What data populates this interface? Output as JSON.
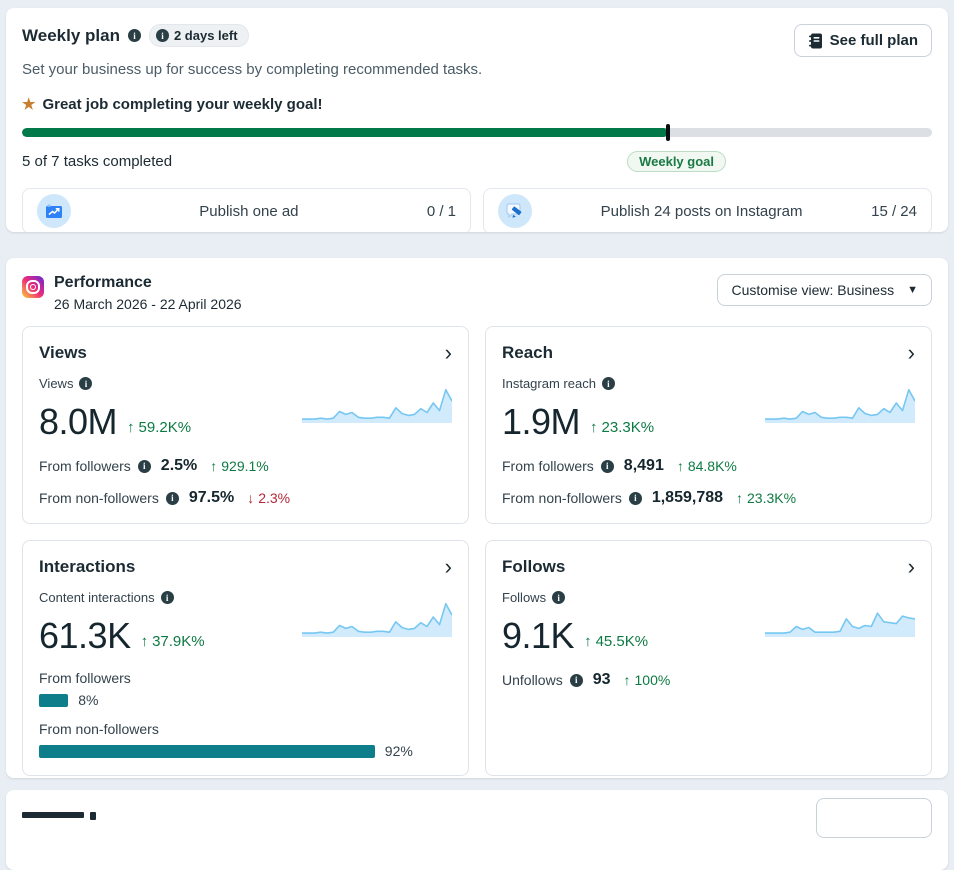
{
  "colors": {
    "progress_green": "#017949",
    "positive_green": "#0e7a43",
    "negative_red": "#b42939",
    "teal_bar": "#0f7e8b",
    "spark_line": "#76c7f2",
    "spark_fill": "#d2ebfc",
    "page_bg": "#e9edf4"
  },
  "weekly_plan": {
    "title": "Weekly plan",
    "days_left_badge": "2 days left",
    "subtitle": "Set your business up for success by completing recommended tasks.",
    "see_full_plan_label": "See full plan",
    "goal_message": "Great job completing your weekly goal!",
    "progress_percent": 71,
    "tasks_completed_text": "5 of 7 tasks completed",
    "weekly_goal_label": "Weekly goal",
    "tasks": [
      {
        "label": "Publish one ad",
        "progress": "0 / 1",
        "icon": "ad-chart-icon"
      },
      {
        "label": "Publish 24 posts on Instagram",
        "progress": "15 / 24",
        "icon": "post-pencil-icon"
      }
    ]
  },
  "performance": {
    "title": "Performance",
    "date_range": "26 March 2026 - 22 April 2026",
    "customise_view_label": "Customise view: Business",
    "cards": [
      {
        "title": "Views",
        "metric_label": "Views",
        "value": "8.0M",
        "delta": "59.2K%",
        "delta_dir": "up",
        "rows": [
          {
            "label": "From followers",
            "value": "2.5%",
            "delta": "929.1%",
            "dir": "up"
          },
          {
            "label": "From non-followers",
            "value": "97.5%",
            "delta": "2.3%",
            "dir": "down"
          }
        ],
        "sparkline": [
          3,
          3,
          3,
          4,
          3,
          4,
          11,
          8,
          10,
          5,
          4,
          4,
          5,
          5,
          4,
          15,
          9,
          7,
          8,
          14,
          10,
          20,
          12,
          34,
          22
        ]
      },
      {
        "title": "Reach",
        "metric_label": "Instagram reach",
        "value": "1.9M",
        "delta": "23.3K%",
        "delta_dir": "up",
        "rows": [
          {
            "label": "From followers",
            "value": "8,491",
            "delta": "84.8K%",
            "dir": "up"
          },
          {
            "label": "From non-followers",
            "value": "1,859,788",
            "delta": "23.3K%",
            "dir": "up"
          }
        ],
        "sparkline": [
          3,
          3,
          3,
          4,
          3,
          4,
          11,
          8,
          10,
          5,
          4,
          4,
          5,
          5,
          4,
          15,
          9,
          7,
          8,
          14,
          10,
          20,
          12,
          34,
          22
        ]
      },
      {
        "title": "Interactions",
        "metric_label": "Content interactions",
        "value": "61.3K",
        "delta": "37.9K%",
        "delta_dir": "up",
        "bars": [
          {
            "label": "From followers",
            "percent": 8
          },
          {
            "label": "From non-followers",
            "percent": 92
          }
        ],
        "sparkline": [
          3,
          3,
          3,
          4,
          3,
          4,
          11,
          8,
          10,
          5,
          4,
          4,
          5,
          5,
          4,
          15,
          9,
          7,
          8,
          14,
          10,
          20,
          12,
          34,
          22
        ]
      },
      {
        "title": "Follows",
        "metric_label": "Follows",
        "value": "9.1K",
        "delta": "45.5K%",
        "delta_dir": "up",
        "rows": [
          {
            "label": "Unfollows",
            "value": "93",
            "delta": "100%",
            "dir": "up"
          }
        ],
        "sparkline": [
          3,
          3,
          3,
          3,
          4,
          10,
          7,
          9,
          4,
          4,
          4,
          4,
          5,
          18,
          10,
          8,
          11,
          10,
          24,
          15,
          14,
          13,
          21,
          19,
          18
        ]
      }
    ]
  },
  "chart_data": [
    {
      "type": "area",
      "title": "Views trend sparkline",
      "x": "days (26 Mar - 22 Apr 2026)",
      "values": [
        3,
        3,
        3,
        4,
        3,
        4,
        11,
        8,
        10,
        5,
        4,
        4,
        5,
        5,
        4,
        15,
        9,
        7,
        8,
        14,
        10,
        20,
        12,
        34,
        22
      ]
    },
    {
      "type": "area",
      "title": "Reach trend sparkline",
      "x": "days (26 Mar - 22 Apr 2026)",
      "values": [
        3,
        3,
        3,
        4,
        3,
        4,
        11,
        8,
        10,
        5,
        4,
        4,
        5,
        5,
        4,
        15,
        9,
        7,
        8,
        14,
        10,
        20,
        12,
        34,
        22
      ]
    },
    {
      "type": "area",
      "title": "Interactions trend sparkline",
      "x": "days (26 Mar - 22 Apr 2026)",
      "values": [
        3,
        3,
        3,
        4,
        3,
        4,
        11,
        8,
        10,
        5,
        4,
        4,
        5,
        5,
        4,
        15,
        9,
        7,
        8,
        14,
        10,
        20,
        12,
        34,
        22
      ]
    },
    {
      "type": "area",
      "title": "Follows trend sparkline",
      "x": "days (26 Mar - 22 Apr 2026)",
      "values": [
        3,
        3,
        3,
        3,
        4,
        10,
        7,
        9,
        4,
        4,
        4,
        4,
        5,
        18,
        10,
        8,
        11,
        10,
        24,
        15,
        14,
        13,
        21,
        19,
        18
      ]
    },
    {
      "type": "bar",
      "title": "Interactions by audience",
      "categories": [
        "From followers",
        "From non-followers"
      ],
      "values": [
        8,
        92
      ],
      "ylabel": "percent"
    }
  ]
}
